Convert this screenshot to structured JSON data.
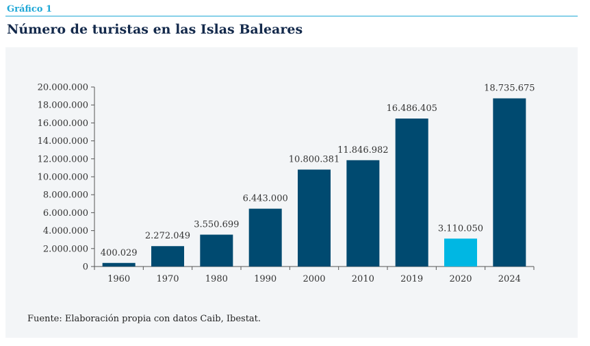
{
  "header": {
    "label": "Gráfico 1"
  },
  "title": "Número de turistas en las Islas Baleares",
  "source": "Fuente: Elaboración propia con datos Caib, Ibestat.",
  "colors": {
    "accent": "#1ea7d6",
    "bar": "#004a70",
    "highlight": "#00b7e3",
    "title": "#13294b"
  },
  "chart_data": {
    "type": "bar",
    "title": "Número de turistas en las Islas Baleares",
    "xlabel": "",
    "ylabel": "",
    "categories": [
      "1960",
      "1970",
      "1980",
      "1990",
      "2000",
      "2010",
      "2019",
      "2020",
      "2024"
    ],
    "values": [
      400029,
      2272049,
      3550699,
      6443000,
      10800381,
      11846982,
      16486405,
      3110050,
      18735675
    ],
    "value_labels": [
      "400.029",
      "2.272.049",
      "3.550.699",
      "6.443.000",
      "10.800.381",
      "11.846.982",
      "16.486.405",
      "3.110.050",
      "18.735.675"
    ],
    "highlight_category": "2020",
    "ylim": [
      0,
      20000000
    ],
    "yticks": [
      0,
      2000000,
      4000000,
      6000000,
      8000000,
      10000000,
      12000000,
      14000000,
      16000000,
      18000000,
      20000000
    ],
    "ytick_labels": [
      "0",
      "2.000.000",
      "4.000.000",
      "6.000.000",
      "8.000.000",
      "10.000.000",
      "12.000.000",
      "14.000.000",
      "16.000.000",
      "18.000.000",
      "20.000.000"
    ],
    "grid": false,
    "legend": "none"
  }
}
